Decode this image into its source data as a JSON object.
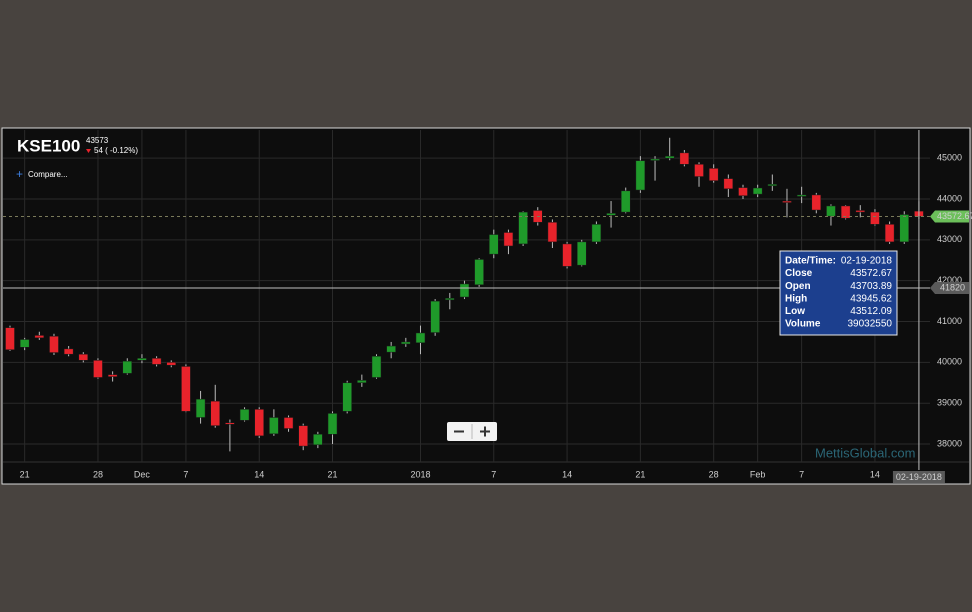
{
  "chart_data": {
    "type": "candlestick",
    "title": "KSE100",
    "last_price": 43573,
    "change": "54 ( -0.12%)",
    "compare_label": "Compare...",
    "watermark": "MettisGlobal.com",
    "up_color": "#1f9a2a",
    "down_color": "#e8232b",
    "categories": [
      null,
      "21",
      null,
      null,
      null,
      null,
      "28",
      null,
      null,
      "Dec",
      null,
      null,
      "7",
      null,
      null,
      null,
      null,
      "14",
      null,
      null,
      null,
      null,
      "21",
      null,
      null,
      null,
      null,
      null,
      "2018",
      null,
      null,
      null,
      null,
      "7",
      null,
      null,
      null,
      null,
      "14",
      null,
      null,
      null,
      null,
      "21",
      null,
      null,
      null,
      null,
      "28",
      null,
      null,
      "Feb",
      null,
      null,
      "7",
      null,
      null,
      null,
      null,
      "14",
      null,
      null,
      "02-19-2018"
    ],
    "open": [
      40850,
      40370,
      40660,
      40640,
      40330,
      40200,
      40050,
      39700,
      39730,
      40050,
      40100,
      40000,
      39900,
      38650,
      39050,
      38520,
      38580,
      38850,
      38250,
      38650,
      38450,
      37980,
      38240,
      38800,
      39500,
      39630,
      40250,
      40450,
      40480,
      40730,
      41530,
      41600,
      41900,
      42650,
      43180,
      42900,
      43720,
      43430,
      42900,
      42380,
      42950,
      43600,
      43680,
      44220,
      44950,
      45000,
      45130,
      44850,
      44750,
      44500,
      44280,
      44120,
      44330,
      43950,
      44080,
      44100,
      43580,
      43830,
      43720,
      43680,
      43380,
      42950,
      43703.89
    ],
    "high": [
      40900,
      40600,
      40750,
      40700,
      40400,
      40250,
      40100,
      39780,
      40100,
      40200,
      40150,
      40050,
      39950,
      39300,
      39450,
      38600,
      38900,
      38900,
      38850,
      38700,
      38500,
      38300,
      38800,
      39550,
      39700,
      40200,
      40500,
      40600,
      40900,
      41550,
      41700,
      42000,
      42550,
      43250,
      43250,
      43700,
      43800,
      43500,
      42950,
      43000,
      43450,
      43950,
      44280,
      45050,
      45050,
      45500,
      45200,
      44900,
      44850,
      44600,
      44350,
      44350,
      44600,
      44250,
      44300,
      44150,
      43870,
      43850,
      43850,
      43750,
      43450,
      43700,
      43945.62
    ],
    "low": [
      40280,
      40300,
      40550,
      40180,
      40150,
      40000,
      39600,
      39530,
      39700,
      39980,
      39900,
      39880,
      38780,
      38500,
      38400,
      37820,
      38550,
      38150,
      38200,
      38300,
      37850,
      37900,
      38000,
      38750,
      39400,
      39600,
      40100,
      40380,
      40200,
      40650,
      41300,
      41550,
      41850,
      42550,
      42650,
      42850,
      43350,
      42800,
      42300,
      42350,
      42900,
      43300,
      43650,
      44150,
      44450,
      44950,
      44800,
      44300,
      44400,
      44050,
      44000,
      44050,
      44200,
      43550,
      43900,
      43650,
      43350,
      43500,
      43550,
      43350,
      42900,
      42900,
      43512.09
    ],
    "close": [
      40310,
      40560,
      40600,
      40240,
      40200,
      40050,
      39630,
      39650,
      40030,
      40100,
      39950,
      39930,
      38800,
      39100,
      38450,
      38500,
      38850,
      38200,
      38650,
      38380,
      37950,
      38240,
      38750,
      39500,
      39560,
      40150,
      40400,
      40500,
      40720,
      41500,
      41570,
      41920,
      42520,
      43130,
      42850,
      43680,
      43430,
      42950,
      42350,
      42950,
      43380,
      43650,
      44200,
      44940,
      44980,
      45050,
      44850,
      44550,
      44450,
      44250,
      44080,
      44270,
      44360,
      43920,
      44100,
      43730,
      43830,
      43530,
      43680,
      43380,
      42950,
      43620,
      43572.67
    ],
    "ylim": [
      37560,
      45690
    ],
    "yticks": [
      38000,
      39000,
      40000,
      41000,
      42000,
      43000,
      44000,
      45000
    ],
    "grid": true,
    "crosshair_value": 41820,
    "tooltip": {
      "labels": [
        "Date/Time:",
        "Close",
        "Open",
        "High",
        "Low",
        "Volume"
      ],
      "volume": 39032550
    }
  }
}
